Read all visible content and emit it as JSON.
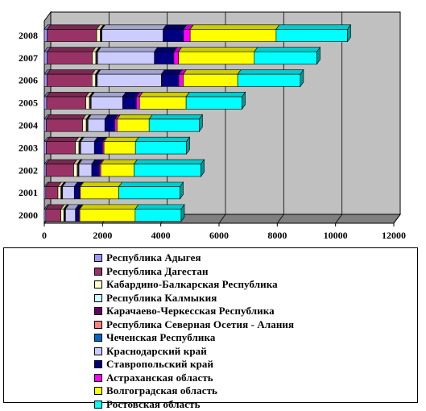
{
  "chart_data": {
    "type": "bar",
    "orientation": "horizontal",
    "stacked": true,
    "three_d": true,
    "categories": [
      "2000",
      "2001",
      "2002",
      "2003",
      "2004",
      "2005",
      "2006",
      "2007",
      "2008"
    ],
    "x_ticks": [
      "0",
      "2000",
      "4000",
      "6000",
      "8000",
      "10000",
      "12000"
    ],
    "xlim": [
      0,
      12000
    ],
    "grid": "vertical major gridlines",
    "legend_position": "bottom",
    "series": [
      {
        "name": "Республика Адыгея",
        "color": "#9999ff",
        "values": [
          50,
          50,
          60,
          70,
          70,
          80,
          90,
          100,
          100
        ]
      },
      {
        "name": "Республика Дагестан",
        "color": "#993366",
        "values": [
          520,
          420,
          950,
          1000,
          1250,
          1350,
          1550,
          1550,
          1700
        ]
      },
      {
        "name": "Кабардино-Балкарская Республика",
        "color": "#ffffcc",
        "values": [
          100,
          100,
          120,
          120,
          120,
          120,
          120,
          120,
          120
        ]
      },
      {
        "name": "Республика Калмыкия",
        "color": "#ccffff",
        "values": [
          20,
          20,
          20,
          20,
          20,
          20,
          20,
          20,
          20
        ]
      },
      {
        "name": "Карачаево-Черкесская Республика",
        "color": "#660066",
        "values": [
          20,
          20,
          20,
          20,
          20,
          20,
          20,
          20,
          20
        ]
      },
      {
        "name": "Республика Северная Осетия - Алания",
        "color": "#ff8080",
        "values": [
          20,
          20,
          20,
          20,
          20,
          20,
          20,
          20,
          20
        ]
      },
      {
        "name": "Чеченская Республика",
        "color": "#0066cc",
        "values": [
          0,
          0,
          0,
          0,
          0,
          0,
          0,
          0,
          0
        ]
      },
      {
        "name": "Краснодарский край",
        "color": "#ccccff",
        "values": [
          340,
          400,
          440,
          470,
          580,
          1080,
          2200,
          1950,
          2100
        ]
      },
      {
        "name": "Ставропольский край",
        "color": "#000080",
        "values": [
          120,
          180,
          260,
          280,
          340,
          470,
          600,
          670,
          700
        ]
      },
      {
        "name": "Астраханская область",
        "color": "#ff00ff",
        "values": [
          30,
          30,
          50,
          50,
          80,
          110,
          150,
          160,
          230
        ]
      },
      {
        "name": "Волгоградская область",
        "color": "#ffff00",
        "values": [
          1900,
          1320,
          1140,
          1080,
          1100,
          1600,
          1870,
          2600,
          2950
        ]
      },
      {
        "name": "Ростовская область",
        "color": "#00ffff",
        "values": [
          1580,
          2100,
          2300,
          1750,
          1720,
          1920,
          2150,
          2150,
          2450
        ]
      }
    ]
  }
}
